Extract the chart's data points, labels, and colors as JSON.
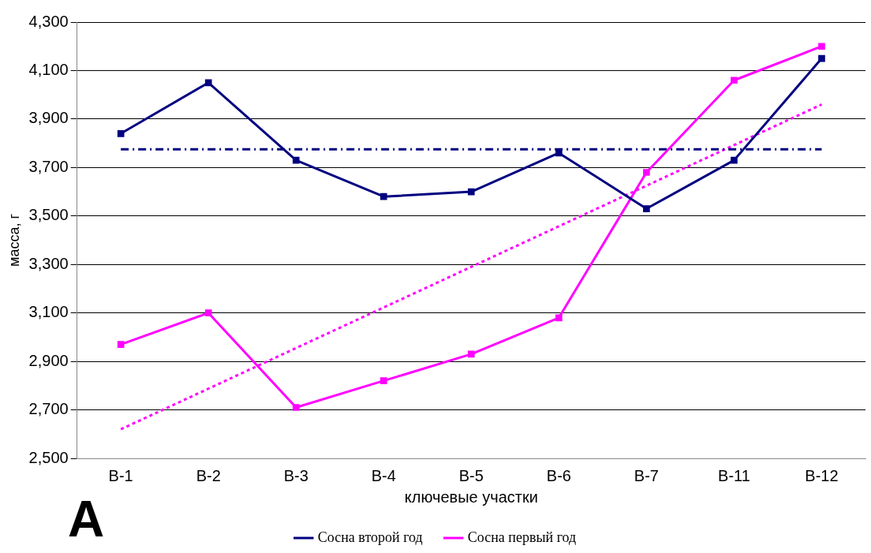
{
  "chart_data": {
    "type": "line",
    "xlabel": "ключевые участки",
    "ylabel": "масса, г",
    "categories": [
      "В-1",
      "В-2",
      "В-3",
      "В-4",
      "В-5",
      "В-6",
      "В-7",
      "В-11",
      "В-12"
    ],
    "series": [
      {
        "name": "Сосна второй год",
        "color": "#000080",
        "values": [
          3840,
          4050,
          3730,
          3580,
          3600,
          3760,
          3530,
          3730,
          4150
        ]
      },
      {
        "name": "Сосна первый год",
        "color": "#ff00ff",
        "values": [
          2970,
          3100,
          2710,
          2820,
          2930,
          3080,
          3680,
          4060,
          4200
        ]
      },
      {
        "type": "line",
        "color": "#000080",
        "line_style": "dashed",
        "marker": "none",
        "values": [
          3775,
          null,
          null,
          null,
          null,
          null,
          null,
          null,
          3775
        ]
      },
      {
        "type": "line",
        "color": "#ff00ff",
        "line_style": "dotted",
        "marker": "none",
        "values": [
          2620,
          null,
          null,
          null,
          null,
          null,
          null,
          null,
          3960
        ]
      }
    ],
    "ylim": [
      2500,
      4300
    ],
    "yticks": [
      {
        "value": 2500,
        "label": "2,500"
      },
      {
        "value": 2700,
        "label": "2,700"
      },
      {
        "value": 2900,
        "label": "2,900"
      },
      {
        "value": 3100,
        "label": "3,100"
      },
      {
        "value": 3300,
        "label": "3,300"
      },
      {
        "value": 3500,
        "label": "3,500"
      },
      {
        "value": 3700,
        "label": "3,700"
      },
      {
        "value": 3900,
        "label": "3,900"
      },
      {
        "value": 4100,
        "label": "4,100"
      },
      {
        "value": 4300,
        "label": "4,300"
      }
    ],
    "grid": "y",
    "legend": "bottom",
    "marker": "square",
    "line_style": "solid",
    "annotations": [
      "А"
    ]
  }
}
